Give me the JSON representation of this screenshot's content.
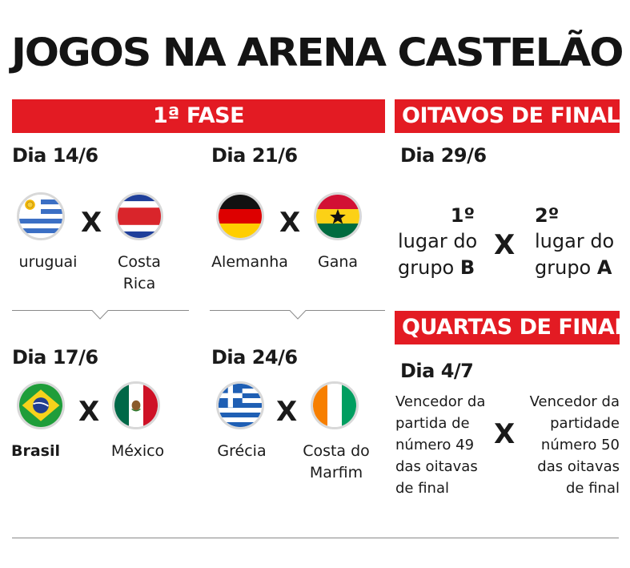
{
  "title": "JOGOS NA ARENA CASTELÃO",
  "colors": {
    "accent": "#e31b23",
    "text": "#1a1a1a"
  },
  "fase1": {
    "header": "1ª FASE",
    "matches": [
      {
        "day": "Dia 14/6",
        "home": "uruguai",
        "away_line1": "Costa",
        "away_line2": "Rica",
        "vs": "X"
      },
      {
        "day": "Dia 21/6",
        "home": "Alemanha",
        "away_line1": "Gana",
        "away_line2": "",
        "vs": "X"
      },
      {
        "day": "Dia 17/6",
        "home": "Brasil",
        "away_line1": "México",
        "away_line2": "",
        "vs": "X"
      },
      {
        "day": "Dia 24/6",
        "home": "Grécia",
        "away_line1": "Costa do",
        "away_line2": "Marfim",
        "vs": "X"
      }
    ]
  },
  "oitavos": {
    "header": "OITAVOS DE FINAL",
    "day": "Dia 29/6",
    "left": {
      "rank": "1º",
      "line1": "lugar do",
      "line2_prefix": "grupo ",
      "group": "B"
    },
    "right": {
      "rank": "2º",
      "line1": "lugar do",
      "line2_prefix": "grupo ",
      "group": "A"
    },
    "vs": "X"
  },
  "quartas": {
    "header": "QUARTAS DE FINAL",
    "day": "Dia 4/7",
    "left_lines": [
      "Vencedor da",
      "partida de",
      "número 49",
      "das oitavas",
      "de final"
    ],
    "right_lines": [
      "Vencedor da",
      "partidade",
      "número 50",
      "das oitavas",
      "de final"
    ],
    "vs": "X"
  }
}
